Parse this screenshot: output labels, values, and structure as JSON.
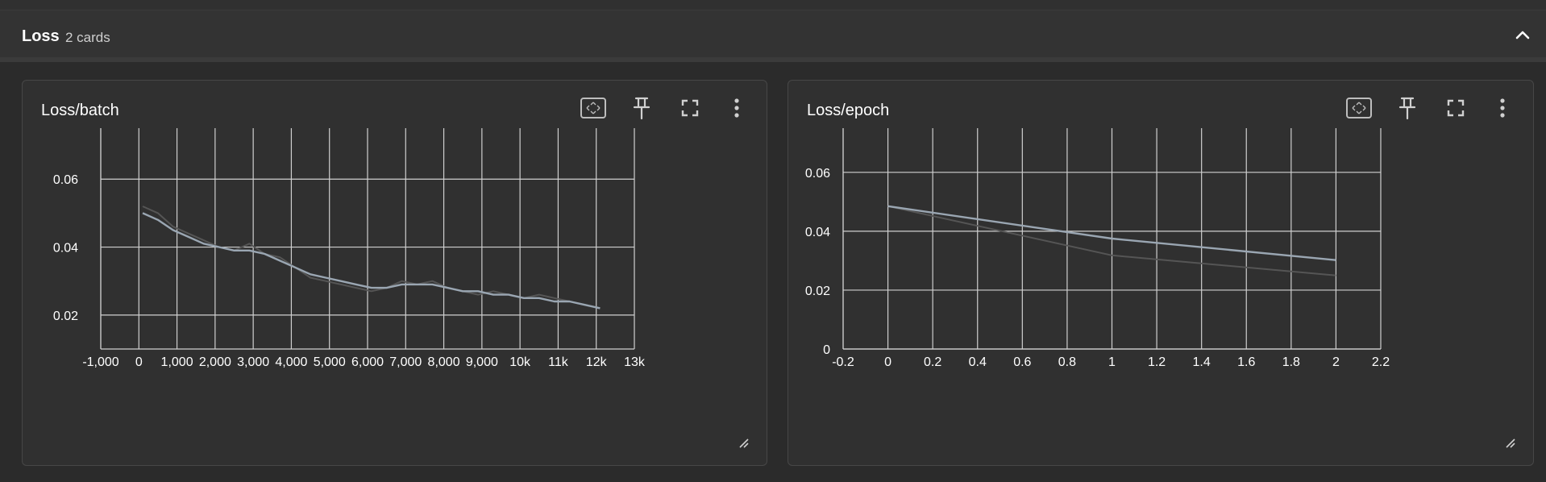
{
  "section": {
    "title": "Loss",
    "count": "2 cards"
  },
  "icons": {
    "collapse": "chevron-up-icon",
    "fit_domain": "fit-domain-icon",
    "pin": "pin-icon",
    "fullscreen": "fullscreen-icon",
    "more": "more-vert-icon",
    "resize": "resize-handle-icon"
  },
  "colors": {
    "smoothed_series": "#9aa6b2",
    "raw_series": "#555555",
    "grid": "#cfcfcf",
    "background": "#2b2b2b"
  },
  "cards": [
    {
      "title": "Loss/batch",
      "chart_data": {
        "type": "line",
        "xlim": [
          -1000,
          13000
        ],
        "ylim": [
          0.01,
          0.075
        ],
        "x_ticks": [
          {
            "v": -1000,
            "label": "-1,000"
          },
          {
            "v": 0,
            "label": "0"
          },
          {
            "v": 1000,
            "label": "1,000"
          },
          {
            "v": 2000,
            "label": "2,000"
          },
          {
            "v": 3000,
            "label": "3,000"
          },
          {
            "v": 4000,
            "label": "4,000"
          },
          {
            "v": 5000,
            "label": "5,000"
          },
          {
            "v": 6000,
            "label": "6,000"
          },
          {
            "v": 7000,
            "label": "7,000"
          },
          {
            "v": 8000,
            "label": "8,000"
          },
          {
            "v": 9000,
            "label": "9,000"
          },
          {
            "v": 10000,
            "label": "10k"
          },
          {
            "v": 11000,
            "label": "11k"
          },
          {
            "v": 12000,
            "label": "12k"
          },
          {
            "v": 13000,
            "label": "13k"
          }
        ],
        "y_ticks": [
          {
            "v": 0.02,
            "label": "0.02"
          },
          {
            "v": 0.04,
            "label": "0.04"
          },
          {
            "v": 0.06,
            "label": "0.06"
          }
        ],
        "grid": true,
        "series": [
          {
            "role": "raw",
            "x": [
              100,
              500,
              900,
              1300,
              1700,
              2100,
              2500,
              2900,
              3300,
              3700,
              4100,
              4500,
              4900,
              5300,
              5700,
              6100,
              6500,
              6900,
              7300,
              7700,
              8100,
              8500,
              8900,
              9300,
              9700,
              10100,
              10500,
              10900,
              11300,
              11700,
              12100
            ],
            "y": [
              0.052,
              0.05,
              0.046,
              0.044,
              0.042,
              0.04,
              0.039,
              0.041,
              0.038,
              0.037,
              0.034,
              0.031,
              0.03,
              0.029,
              0.028,
              0.027,
              0.028,
              0.03,
              0.029,
              0.03,
              0.028,
              0.027,
              0.026,
              0.027,
              0.026,
              0.025,
              0.026,
              0.025,
              0.024,
              0.023,
              0.022
            ]
          },
          {
            "role": "smoothed",
            "x": [
              100,
              500,
              900,
              1300,
              1700,
              2100,
              2500,
              2900,
              3300,
              3700,
              4100,
              4500,
              4900,
              5300,
              5700,
              6100,
              6500,
              6900,
              7300,
              7700,
              8100,
              8500,
              8900,
              9300,
              9700,
              10100,
              10500,
              10900,
              11300,
              11700,
              12100
            ],
            "y": [
              0.05,
              0.048,
              0.045,
              0.043,
              0.041,
              0.04,
              0.039,
              0.039,
              0.038,
              0.036,
              0.034,
              0.032,
              0.031,
              0.03,
              0.029,
              0.028,
              0.028,
              0.029,
              0.029,
              0.029,
              0.028,
              0.027,
              0.027,
              0.026,
              0.026,
              0.025,
              0.025,
              0.024,
              0.024,
              0.023,
              0.022
            ]
          }
        ]
      }
    },
    {
      "title": "Loss/epoch",
      "chart_data": {
        "type": "line",
        "xlim": [
          -0.2,
          2.2
        ],
        "ylim": [
          0.0,
          0.075
        ],
        "x_ticks": [
          {
            "v": -0.2,
            "label": "-0.2"
          },
          {
            "v": 0,
            "label": "0"
          },
          {
            "v": 0.2,
            "label": "0.2"
          },
          {
            "v": 0.4,
            "label": "0.4"
          },
          {
            "v": 0.6,
            "label": "0.6"
          },
          {
            "v": 0.8,
            "label": "0.8"
          },
          {
            "v": 1.0,
            "label": "1"
          },
          {
            "v": 1.2,
            "label": "1.2"
          },
          {
            "v": 1.4,
            "label": "1.4"
          },
          {
            "v": 1.6,
            "label": "1.6"
          },
          {
            "v": 1.8,
            "label": "1.8"
          },
          {
            "v": 2.0,
            "label": "2"
          },
          {
            "v": 2.2,
            "label": "2.2"
          }
        ],
        "y_ticks": [
          {
            "v": 0.0,
            "label": "0"
          },
          {
            "v": 0.02,
            "label": "0.02"
          },
          {
            "v": 0.04,
            "label": "0.04"
          },
          {
            "v": 0.06,
            "label": "0.06"
          }
        ],
        "grid": true,
        "series": [
          {
            "role": "raw",
            "x": [
              0,
              1,
              2
            ],
            "y": [
              0.0485,
              0.0318,
              0.025
            ]
          },
          {
            "role": "smoothed",
            "x": [
              0,
              1,
              2
            ],
            "y": [
              0.0485,
              0.0375,
              0.0302
            ]
          }
        ]
      }
    }
  ]
}
